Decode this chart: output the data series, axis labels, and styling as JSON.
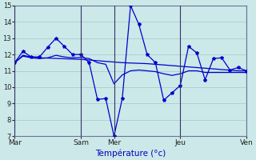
{
  "xlabel": "Température (°c)",
  "background_color": "#cce8e8",
  "grid_color": "#99cccc",
  "line_color": "#0000cc",
  "ylim": [
    7,
    15
  ],
  "yticks": [
    7,
    8,
    9,
    10,
    11,
    12,
    13,
    14,
    15
  ],
  "ytick_fontsize": 6,
  "xtick_fontsize": 6.5,
  "xlabel_fontsize": 7.5,
  "xlabel_color": "#0000bb",
  "n_points": 29,
  "xtick_labels": [
    "Mar",
    "Sam",
    "Mer",
    "Jeu",
    "Ven"
  ],
  "xtick_positions": [
    0,
    8,
    12,
    20,
    28
  ],
  "series1": [
    11.5,
    12.2,
    11.85,
    11.85,
    12.45,
    13.0,
    12.5,
    12.0,
    12.0,
    11.5,
    9.25,
    9.3,
    7.0,
    9.3,
    15.0,
    13.85,
    12.0,
    11.5,
    9.2,
    9.65,
    10.1,
    12.5,
    12.1,
    10.45,
    11.75,
    11.8,
    11.05,
    11.2,
    11.0
  ],
  "series2": [
    11.5,
    11.95,
    11.85,
    11.8,
    11.78,
    11.76,
    11.74,
    11.72,
    11.7,
    11.66,
    11.62,
    11.58,
    11.54,
    11.5,
    11.48,
    11.46,
    11.44,
    11.4,
    11.36,
    11.32,
    11.28,
    11.24,
    11.2,
    11.16,
    11.12,
    11.08,
    11.04,
    11.0,
    11.0
  ],
  "series3": [
    11.5,
    11.9,
    11.8,
    11.75,
    11.8,
    11.95,
    11.85,
    11.8,
    11.82,
    11.75,
    11.5,
    11.4,
    10.2,
    10.75,
    11.0,
    11.05,
    11.0,
    10.95,
    10.82,
    10.72,
    10.82,
    11.0,
    11.0,
    10.9,
    10.9,
    10.9,
    10.9,
    10.9,
    10.9
  ]
}
